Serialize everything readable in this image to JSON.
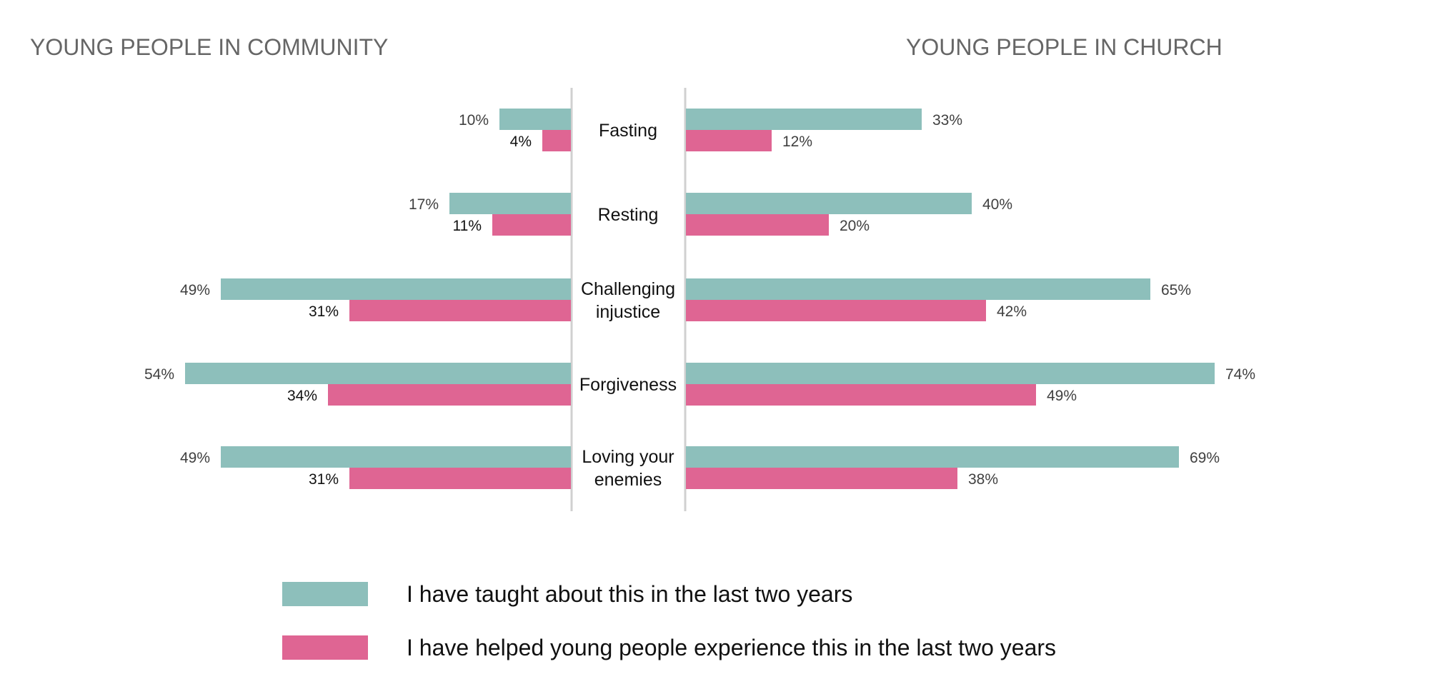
{
  "chart_data": {
    "type": "bar",
    "orientation": "horizontal",
    "layout": "butterfly",
    "categories": [
      [
        "Fasting"
      ],
      [
        "Resting"
      ],
      [
        "Challenging",
        "injustice"
      ],
      [
        "Forgiveness"
      ],
      [
        "Loving your",
        "enemies"
      ]
    ],
    "panels": [
      {
        "title": "YOUNG PEOPLE IN COMMUNITY",
        "direction": "left",
        "series": [
          {
            "key": "taught",
            "values": [
              10,
              17,
              49,
              54,
              49
            ],
            "labels": [
              "10%",
              "17%",
              "49%",
              "54%",
              "49%"
            ]
          },
          {
            "key": "helped",
            "values": [
              4,
              11,
              31,
              34,
              31
            ],
            "labels": [
              "4%",
              "11%",
              "31%",
              "34%",
              "31%"
            ]
          }
        ]
      },
      {
        "title": "YOUNG PEOPLE IN CHURCH",
        "direction": "right",
        "series": [
          {
            "key": "taught",
            "values": [
              33,
              40,
              65,
              74,
              69
            ],
            "labels": [
              "33%",
              "40%",
              "65%",
              "74%",
              "69%"
            ]
          },
          {
            "key": "helped",
            "values": [
              12,
              20,
              42,
              49,
              38
            ],
            "labels": [
              "12%",
              "20%",
              "42%",
              "49%",
              "38%"
            ]
          }
        ]
      }
    ],
    "legend": [
      {
        "key": "taught",
        "name": "I have taught about this in the last two years",
        "color": "#8dbfbb"
      },
      {
        "key": "helped",
        "name": "I have helped young people experience this in the last two years",
        "color": "#df6593"
      }
    ],
    "legend_position": "bottom",
    "grid": false
  }
}
